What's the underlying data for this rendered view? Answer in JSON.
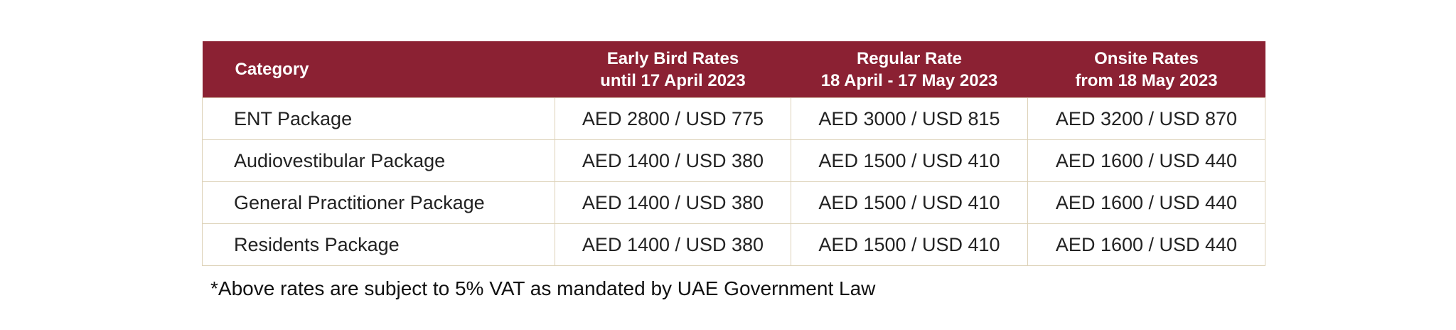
{
  "table": {
    "headers": [
      {
        "line1": "Category",
        "line2": ""
      },
      {
        "line1": "Early Bird Rates",
        "line2": "until 17 April 2023"
      },
      {
        "line1": "Regular Rate",
        "line2": "18 April - 17 May 2023"
      },
      {
        "line1": "Onsite Rates",
        "line2": "from 18 May 2023"
      }
    ],
    "rows": [
      [
        "ENT Package",
        "AED 2800 / USD 775",
        "AED 3000 / USD 815",
        "AED 3200 / USD 870"
      ],
      [
        "Audiovestibular Package",
        "AED 1400 / USD 380",
        "AED 1500 / USD 410",
        "AED 1600 / USD 440"
      ],
      [
        "General Practitioner Package",
        "AED 1400 / USD 380",
        "AED 1500 / USD 410",
        "AED 1600 / USD 440"
      ],
      [
        "Residents Package",
        "AED 1400 / USD 380",
        "AED 1500 / USD 410",
        "AED 1600 / USD 440"
      ]
    ]
  },
  "footnote": "*Above rates are subject to 5% VAT as mandated by UAE Government Law",
  "colors": {
    "header_bg": "#8b2133",
    "header_text": "#ffffff",
    "border": "#ddd2b8"
  }
}
